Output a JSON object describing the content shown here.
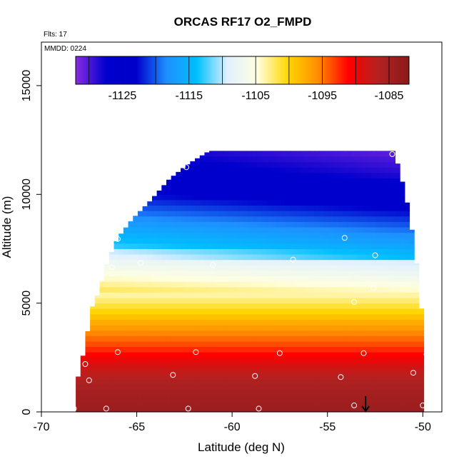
{
  "chart_data": {
    "type": "heatmap",
    "title": "ORCAS RF17 O2_FMPD",
    "annotations": {
      "flights": "Flts: 17",
      "date": "MMDD: 0224"
    },
    "xlabel": "Latitude (deg N)",
    "ylabel": "Altitude (m)",
    "xlim": [
      -70,
      -49
    ],
    "ylim": [
      0,
      17000
    ],
    "x_ticks": [
      -70,
      -65,
      -60,
      -55,
      -50
    ],
    "x_tick_labels": [
      "-70",
      "-65",
      "-60",
      "-55",
      "-50"
    ],
    "y_ticks": [
      0,
      5000,
      10000,
      15000
    ],
    "y_tick_labels": [
      "0",
      "5000",
      "10000",
      "15000"
    ],
    "colorbar": {
      "range": [
        -1132,
        -1082
      ],
      "ticks": [
        -1125,
        -1115,
        -1105,
        -1095,
        -1085
      ],
      "tick_labels": [
        "-1125",
        "-1115",
        "-1105",
        "-1095",
        "-1085"
      ],
      "colors": [
        "#8a2be2",
        "#0000cd",
        "#0000cd",
        "#1e90ff",
        "#00bfff",
        "#e0f0ff",
        "#ffffe0",
        "#ffd700",
        "#ff8c00",
        "#ff0000",
        "#b22222",
        "#8b1a1a"
      ]
    },
    "grid": false,
    "coverage_top_altitude": [
      [
        -68.2,
        1000
      ],
      [
        -68.0,
        2000
      ],
      [
        -67.7,
        3000
      ],
      [
        -67.4,
        4700
      ],
      [
        -67.0,
        5500
      ],
      [
        -66.5,
        7000
      ],
      [
        -66.0,
        8000
      ],
      [
        -65.2,
        8900
      ],
      [
        -64.3,
        9700
      ],
      [
        -63.3,
        10700
      ],
      [
        -62.3,
        11400
      ],
      [
        -61.2,
        12000
      ],
      [
        -51.5,
        12000
      ],
      [
        -50.9,
        10000
      ],
      [
        -50.5,
        8000
      ],
      [
        -50.2,
        6000
      ],
      [
        -50.0,
        4000
      ],
      [
        -49.9,
        2000
      ],
      [
        -49.9,
        0
      ]
    ],
    "field_profile": [
      [
        0,
        -1084
      ],
      [
        1000,
        -1085
      ],
      [
        2000,
        -1088
      ],
      [
        3000,
        -1093
      ],
      [
        4000,
        -1097
      ],
      [
        5000,
        -1102
      ],
      [
        6000,
        -1106
      ],
      [
        7000,
        -1110
      ],
      [
        8000,
        -1114
      ],
      [
        9000,
        -1118
      ],
      [
        10000,
        -1122
      ],
      [
        11000,
        -1125
      ],
      [
        12000,
        -1127
      ]
    ],
    "sample_points": [
      [
        -68.3,
        150
      ],
      [
        -66.6,
        150
      ],
      [
        -62.3,
        150
      ],
      [
        -58.6,
        150
      ],
      [
        -53.6,
        300
      ],
      [
        -50.0,
        300
      ],
      [
        -67.5,
        1450
      ],
      [
        -63.1,
        1700
      ],
      [
        -58.8,
        1650
      ],
      [
        -54.3,
        1600
      ],
      [
        -50.5,
        1800
      ],
      [
        -67.7,
        2200
      ],
      [
        -66.0,
        2750
      ],
      [
        -61.9,
        2750
      ],
      [
        -57.5,
        2700
      ],
      [
        -53.1,
        2700
      ],
      [
        -49.8,
        2650
      ],
      [
        -53.6,
        5050
      ],
      [
        -52.6,
        5700
      ],
      [
        -64.8,
        6850
      ],
      [
        -61.0,
        6750
      ],
      [
        -56.8,
        7000
      ],
      [
        -52.5,
        7200
      ],
      [
        -54.1,
        8000
      ],
      [
        -66.0,
        7950
      ],
      [
        -66.3,
        6650
      ],
      [
        -62.4,
        11250
      ],
      [
        -60.5,
        12150
      ],
      [
        -51.6,
        11850
      ]
    ],
    "arrow_marker_x": -53.0
  }
}
